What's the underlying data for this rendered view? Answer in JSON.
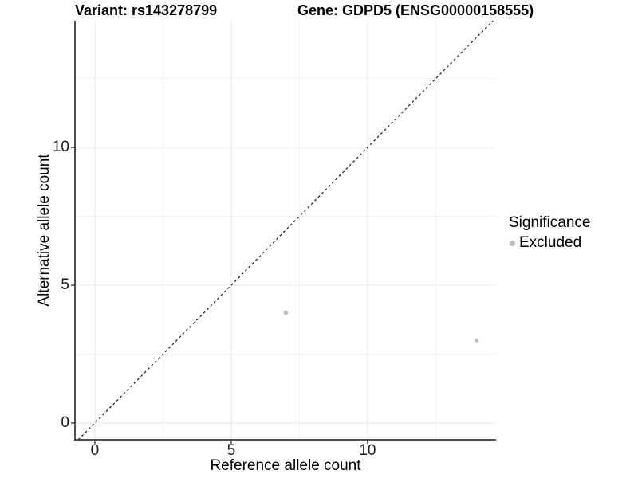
{
  "figure": {
    "title_variant": "Variant: rs143278799",
    "title_gene": "Gene: GDPD5 (ENSG00000158555)"
  },
  "chart_data": {
    "type": "scatter",
    "title_left": "Variant: rs143278799",
    "title_right": "Gene: GDPD5 (ENSG00000158555)",
    "xlabel": "Reference allele count",
    "ylabel": "Alternative allele count",
    "xlim": [
      -0.73,
      14.71
    ],
    "ylim": [
      -0.61,
      14.6
    ],
    "x_major_ticks": [
      0,
      5,
      10
    ],
    "y_major_ticks": [
      0,
      5,
      10
    ],
    "x_minor_gridlines": [
      2.5,
      7.5,
      12.5
    ],
    "y_minor_gridlines": [
      2.5,
      7.5,
      12.5
    ],
    "grid": true,
    "points": [
      {
        "x": 7,
        "y": 4,
        "series": "Excluded"
      },
      {
        "x": 14,
        "y": 3,
        "series": "Excluded"
      }
    ],
    "identity_line": {
      "style": "dashed",
      "equation": "y = x"
    },
    "colors": {
      "point": "#bdbdbd",
      "grid_major": "#e8e8e8",
      "grid_minor": "#f2f2f2",
      "axis": "#3a3a3a",
      "dashed_line": "#1a1a1a"
    },
    "legend": {
      "title": "Significance",
      "position": "right",
      "items": [
        {
          "label": "Excluded",
          "color": "#bdbdbd"
        }
      ]
    }
  }
}
